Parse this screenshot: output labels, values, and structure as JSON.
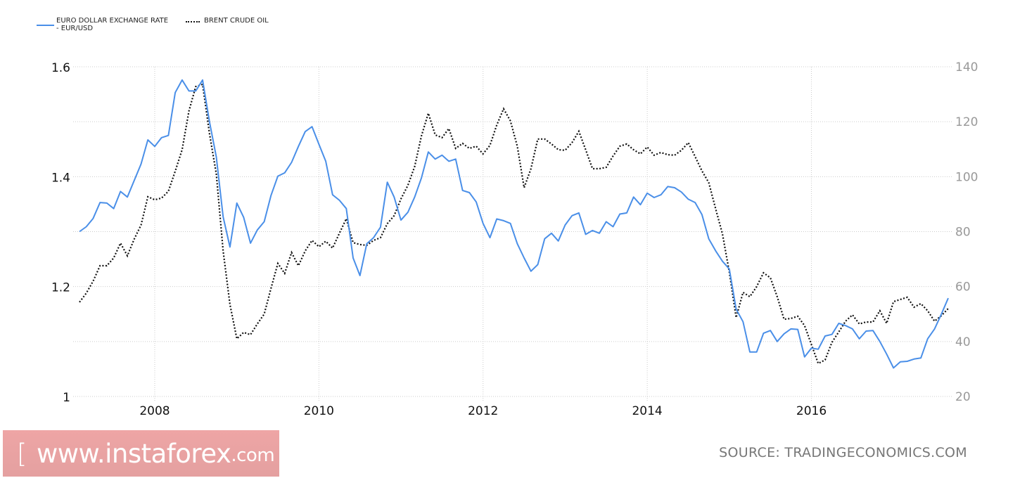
{
  "legend": {
    "series1_line1": "EURO DOLLAR EXCHANGE RATE",
    "series1_line2": "- EUR/USD",
    "series2": "BRENT CRUDE OIL"
  },
  "watermark": {
    "open": "[",
    "text": "www.instaforex",
    "suffix": ".com",
    "close": "]"
  },
  "source": "SOURCE: TRADINGECONOMICS.COM",
  "colors": {
    "eur": "#4a8fe8",
    "oil": "#111111",
    "grid": "#cccccc"
  },
  "chart_data": {
    "type": "line",
    "title": "",
    "start_month": "2007-02",
    "frequency": "monthly",
    "x_ticks": [
      {
        "label": "2008",
        "month_index": 11
      },
      {
        "label": "2010",
        "month_index": 35
      },
      {
        "label": "2012",
        "month_index": 59
      },
      {
        "label": "2014",
        "month_index": 83
      },
      {
        "label": "2016",
        "month_index": 107
      }
    ],
    "y_left": {
      "range": [
        1.0,
        1.6
      ],
      "ticks": [
        "1",
        "1.2",
        "1.4",
        "1.6"
      ],
      "tick_values": [
        1.0,
        1.2,
        1.4,
        1.6
      ]
    },
    "y_right": {
      "range": [
        20,
        140
      ],
      "ticks": [
        "20",
        "40",
        "60",
        "80",
        "100",
        "120",
        "140"
      ],
      "tick_values": [
        20,
        40,
        60,
        80,
        100,
        120,
        140
      ]
    },
    "grid": true,
    "legend_position": "top-left",
    "series": [
      {
        "name": "EURO DOLLAR EXCHANGE RATE - EUR/USD",
        "axis": "left",
        "style": "solid",
        "values": [
          1.3,
          1.309,
          1.324,
          1.353,
          1.352,
          1.342,
          1.373,
          1.363,
          1.393,
          1.423,
          1.467,
          1.455,
          1.471,
          1.475,
          1.553,
          1.576,
          1.556,
          1.556,
          1.576,
          1.5,
          1.436,
          1.327,
          1.272,
          1.352,
          1.326,
          1.279,
          1.303,
          1.318,
          1.366,
          1.401,
          1.407,
          1.426,
          1.455,
          1.482,
          1.491,
          1.459,
          1.428,
          1.367,
          1.357,
          1.342,
          1.252,
          1.22,
          1.278,
          1.289,
          1.308,
          1.39,
          1.363,
          1.321,
          1.335,
          1.363,
          1.398,
          1.445,
          1.432,
          1.439,
          1.428,
          1.432,
          1.375,
          1.371,
          1.354,
          1.315,
          1.289,
          1.323,
          1.32,
          1.315,
          1.278,
          1.252,
          1.228,
          1.24,
          1.287,
          1.297,
          1.283,
          1.312,
          1.329,
          1.334,
          1.295,
          1.302,
          1.297,
          1.318,
          1.309,
          1.332,
          1.334,
          1.363,
          1.349,
          1.37,
          1.362,
          1.367,
          1.382,
          1.38,
          1.372,
          1.359,
          1.353,
          1.331,
          1.287,
          1.265,
          1.246,
          1.232,
          1.159,
          1.136,
          1.081,
          1.081,
          1.115,
          1.12,
          1.1,
          1.114,
          1.123,
          1.122,
          1.072,
          1.088,
          1.086,
          1.11,
          1.113,
          1.133,
          1.129,
          1.123,
          1.105,
          1.119,
          1.12,
          1.1,
          1.077,
          1.052,
          1.063,
          1.064,
          1.068,
          1.07,
          1.105,
          1.123,
          1.15,
          1.179
        ]
      },
      {
        "name": "BRENT CRUDE OIL",
        "axis": "right",
        "style": "dotted",
        "values": [
          54.3,
          57.6,
          62.0,
          67.6,
          67.6,
          70.4,
          75.8,
          71.2,
          77.3,
          82.4,
          92.7,
          91.6,
          92.2,
          94.7,
          102.0,
          109.8,
          123.9,
          132.8,
          133.6,
          115.7,
          101.0,
          73.0,
          53.5,
          41.0,
          43.3,
          42.5,
          46.4,
          50.0,
          59.4,
          68.4,
          64.8,
          72.4,
          67.6,
          73.0,
          76.8,
          74.5,
          76.5,
          74.0,
          79.4,
          84.7,
          76.0,
          75.3,
          75.0,
          76.8,
          77.8,
          82.9,
          85.8,
          91.9,
          96.8,
          103.7,
          114.9,
          123.1,
          115.2,
          114.2,
          117.5,
          110.3,
          112.1,
          110.3,
          111.1,
          108.3,
          111.4,
          118.8,
          124.7,
          120.3,
          111.1,
          96.0,
          102.9,
          113.7,
          113.7,
          111.9,
          109.8,
          109.6,
          112.4,
          116.5,
          109.8,
          102.9,
          102.9,
          103.4,
          107.5,
          111.1,
          111.9,
          109.8,
          108.3,
          110.8,
          107.8,
          108.8,
          108.0,
          107.8,
          109.6,
          112.4,
          107.3,
          102.1,
          97.8,
          88.3,
          79.1,
          65.3,
          48.7,
          57.9,
          56.3,
          60.0,
          65.0,
          63.2,
          56.3,
          48.1,
          48.4,
          49.2,
          45.8,
          38.9,
          32.0,
          33.3,
          39.7,
          43.5,
          47.4,
          49.7,
          46.4,
          47.1,
          47.1,
          51.2,
          46.6,
          54.5,
          55.3,
          56.1,
          52.5,
          53.8,
          51.2,
          47.4,
          49.4,
          52.0
        ]
      }
    ]
  }
}
